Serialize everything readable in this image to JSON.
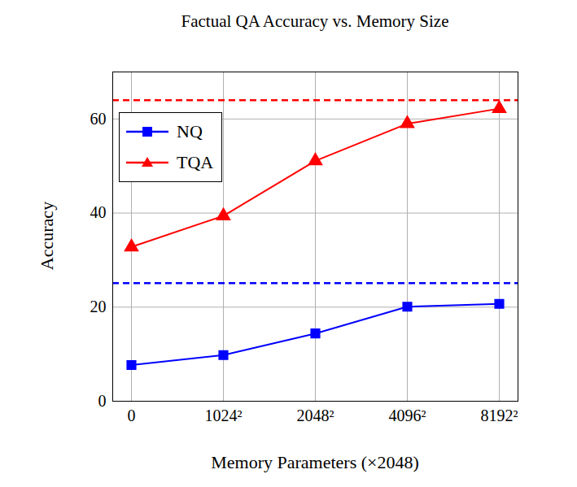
{
  "chart_data": {
    "type": "line",
    "title": "Factual QA Accuracy vs. Memory Size",
    "x_label": "Memory Parameters (×2048)",
    "y_label": "Accuracy",
    "categories": [
      "0",
      "1024²",
      "2048²",
      "4096²",
      "8192²"
    ],
    "series": [
      {
        "name": "NQ",
        "color": "#0000ff",
        "marker": "square",
        "line_style": "solid",
        "values": [
          7.7,
          9.8,
          14.4,
          20.1,
          20.7
        ],
        "reference": 25.1
      },
      {
        "name": "TQA",
        "color": "#ff0000",
        "marker": "triangle",
        "line_style": "solid",
        "values": [
          32.8,
          39.4,
          51.1,
          59.0,
          62.2
        ],
        "reference": 64.0
      }
    ],
    "ylim": [
      0,
      70
    ],
    "yticks": [
      0,
      20,
      40,
      60
    ],
    "grid": true,
    "legend": "upper left"
  }
}
